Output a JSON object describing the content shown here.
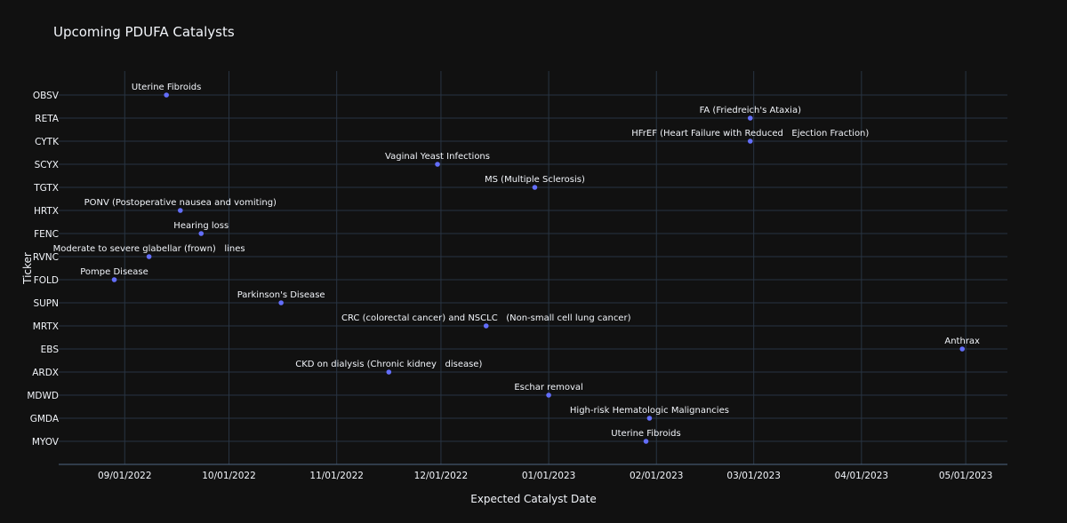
{
  "chart_data": {
    "type": "scatter",
    "title": "Upcoming PDUFA Catalysts",
    "xlabel": "Expected Catalyst Date",
    "ylabel": "Ticker",
    "xlim": [
      "2022-08-13",
      "2023-05-13"
    ],
    "x_ticks": [
      "2022-09-01",
      "2022-10-01",
      "2022-11-01",
      "2022-12-01",
      "2023-01-01",
      "2023-02-01",
      "2023-03-01",
      "2023-04-01",
      "2023-05-01"
    ],
    "x_tick_labels": [
      "09/01/2022",
      "10/01/2022",
      "11/01/2022",
      "12/01/2022",
      "01/01/2023",
      "02/01/2023",
      "03/01/2023",
      "04/01/2023",
      "05/01/2023"
    ],
    "categories": [
      "OBSV",
      "RETA",
      "CYTK",
      "SCYX",
      "TGTX",
      "HRTX",
      "FENC",
      "RVNC",
      "FOLD",
      "SUPN",
      "MRTX",
      "EBS",
      "ARDX",
      "MDWD",
      "GMDA",
      "MYOV"
    ],
    "marker_color": "#636efa",
    "points": [
      {
        "ticker": "OBSV",
        "date": "2022-09-13",
        "label": "Uterine Fibroids"
      },
      {
        "ticker": "RETA",
        "date": "2023-02-28",
        "label": "FA (Friedreich's Ataxia)"
      },
      {
        "ticker": "CYTK",
        "date": "2023-02-28",
        "label": "HFrEF (Heart Failure with Reduced   Ejection Fraction)"
      },
      {
        "ticker": "SCYX",
        "date": "2022-11-30",
        "label": "Vaginal Yeast Infections"
      },
      {
        "ticker": "TGTX",
        "date": "2022-12-28",
        "label": "MS (Multiple Sclerosis)"
      },
      {
        "ticker": "HRTX",
        "date": "2022-09-17",
        "label": "PONV (Postoperative nausea and vomiting)"
      },
      {
        "ticker": "FENC",
        "date": "2022-09-23",
        "label": "Hearing loss"
      },
      {
        "ticker": "RVNC",
        "date": "2022-09-08",
        "label": "Moderate to severe glabellar (frown)   lines"
      },
      {
        "ticker": "FOLD",
        "date": "2022-08-29",
        "label": "Pompe Disease"
      },
      {
        "ticker": "SUPN",
        "date": "2022-10-16",
        "label": "Parkinson's Disease"
      },
      {
        "ticker": "MRTX",
        "date": "2022-12-14",
        "label": "CRC (colorectal cancer) and NSCLC   (Non-small cell lung cancer)"
      },
      {
        "ticker": "EBS",
        "date": "2023-04-30",
        "label": "Anthrax"
      },
      {
        "ticker": "ARDX",
        "date": "2022-11-16",
        "label": "CKD on dialysis (Chronic kidney   disease)"
      },
      {
        "ticker": "MDWD",
        "date": "2023-01-01",
        "label": "Eschar removal"
      },
      {
        "ticker": "GMDA",
        "date": "2023-01-30",
        "label": "High-risk Hematologic Malignancies"
      },
      {
        "ticker": "MYOV",
        "date": "2023-01-29",
        "label": "Uterine Fibroids"
      }
    ]
  }
}
